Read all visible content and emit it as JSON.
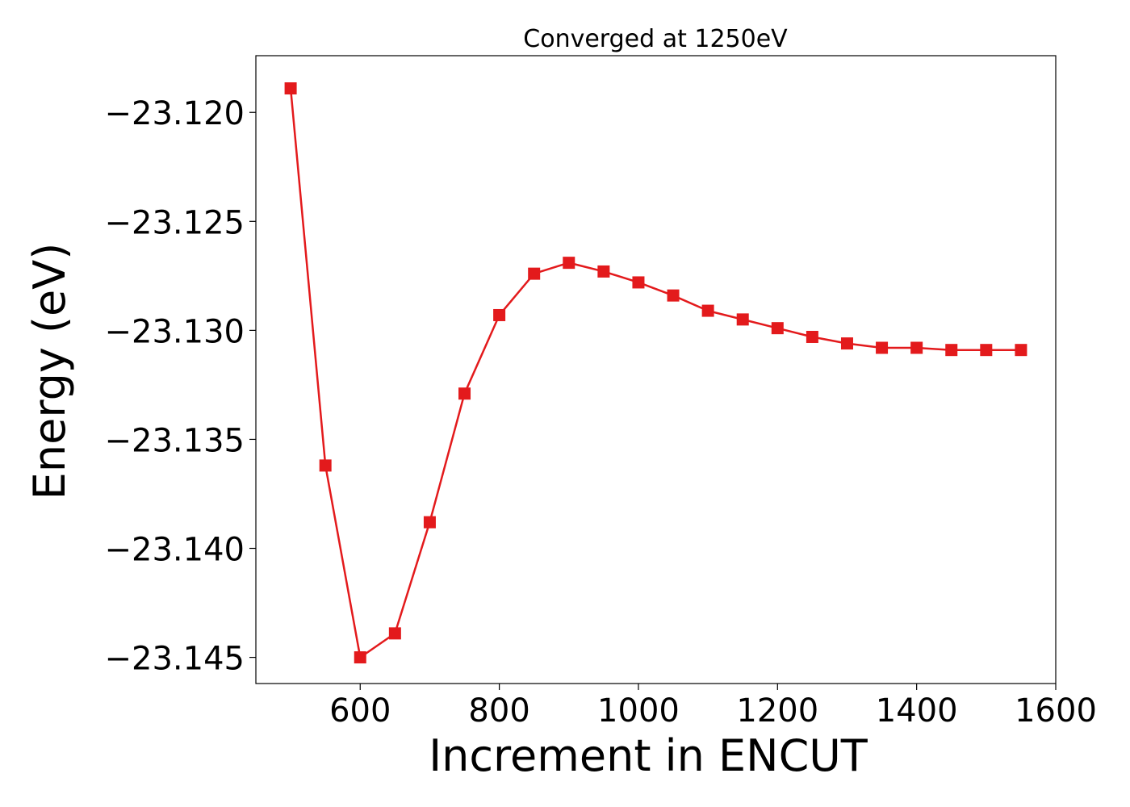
{
  "chart_data": {
    "type": "line",
    "title": "Converged at 1250eV",
    "xlabel": "Increment in ENCUT",
    "ylabel": "Energy (eV)",
    "xlim": [
      450,
      1600
    ],
    "ylim": [
      -23.1462,
      -23.1174
    ],
    "xticks": [
      600,
      800,
      1000,
      1200,
      1400,
      1600
    ],
    "yticks": [
      -23.12,
      -23.125,
      -23.13,
      -23.135,
      -23.14,
      -23.145
    ],
    "ytick_labels": [
      "−23.120",
      "−23.125",
      "−23.130",
      "−23.135",
      "−23.140",
      "−23.145"
    ],
    "grid": false,
    "series": [
      {
        "color": "#e31a1c",
        "marker": "square",
        "x": [
          500,
          550,
          600,
          650,
          700,
          750,
          800,
          850,
          900,
          950,
          1000,
          1050,
          1100,
          1150,
          1200,
          1250,
          1300,
          1350,
          1400,
          1450,
          1500,
          1550
        ],
        "y": [
          -23.1189,
          -23.1362,
          -23.145,
          -23.1439,
          -23.1388,
          -23.1329,
          -23.1293,
          -23.1274,
          -23.1269,
          -23.1273,
          -23.1278,
          -23.1284,
          -23.1291,
          -23.1295,
          -23.1299,
          -23.1303,
          -23.1306,
          -23.1308,
          -23.1308,
          -23.1309,
          -23.1309,
          -23.1309
        ]
      }
    ]
  }
}
